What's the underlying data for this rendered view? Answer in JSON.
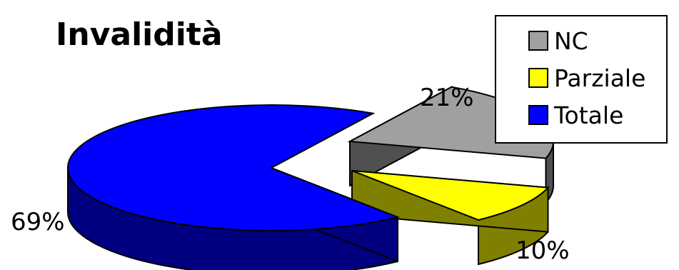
{
  "chart_data": {
    "type": "pie",
    "title": "Invalidità",
    "slices": [
      {
        "name": "NC",
        "value": 21,
        "label": "21%",
        "top_color": "#a0a0a0",
        "side_color": "#505050"
      },
      {
        "name": "Parziale",
        "value": 10,
        "label": "10%",
        "top_color": "#ffff00",
        "side_color": "#808000"
      },
      {
        "name": "Totale",
        "value": 69,
        "label": "69%",
        "top_color": "#0000ff",
        "side_color": "#000080"
      }
    ],
    "three_d": true,
    "exploded": true,
    "legend_placement": "top-right"
  }
}
